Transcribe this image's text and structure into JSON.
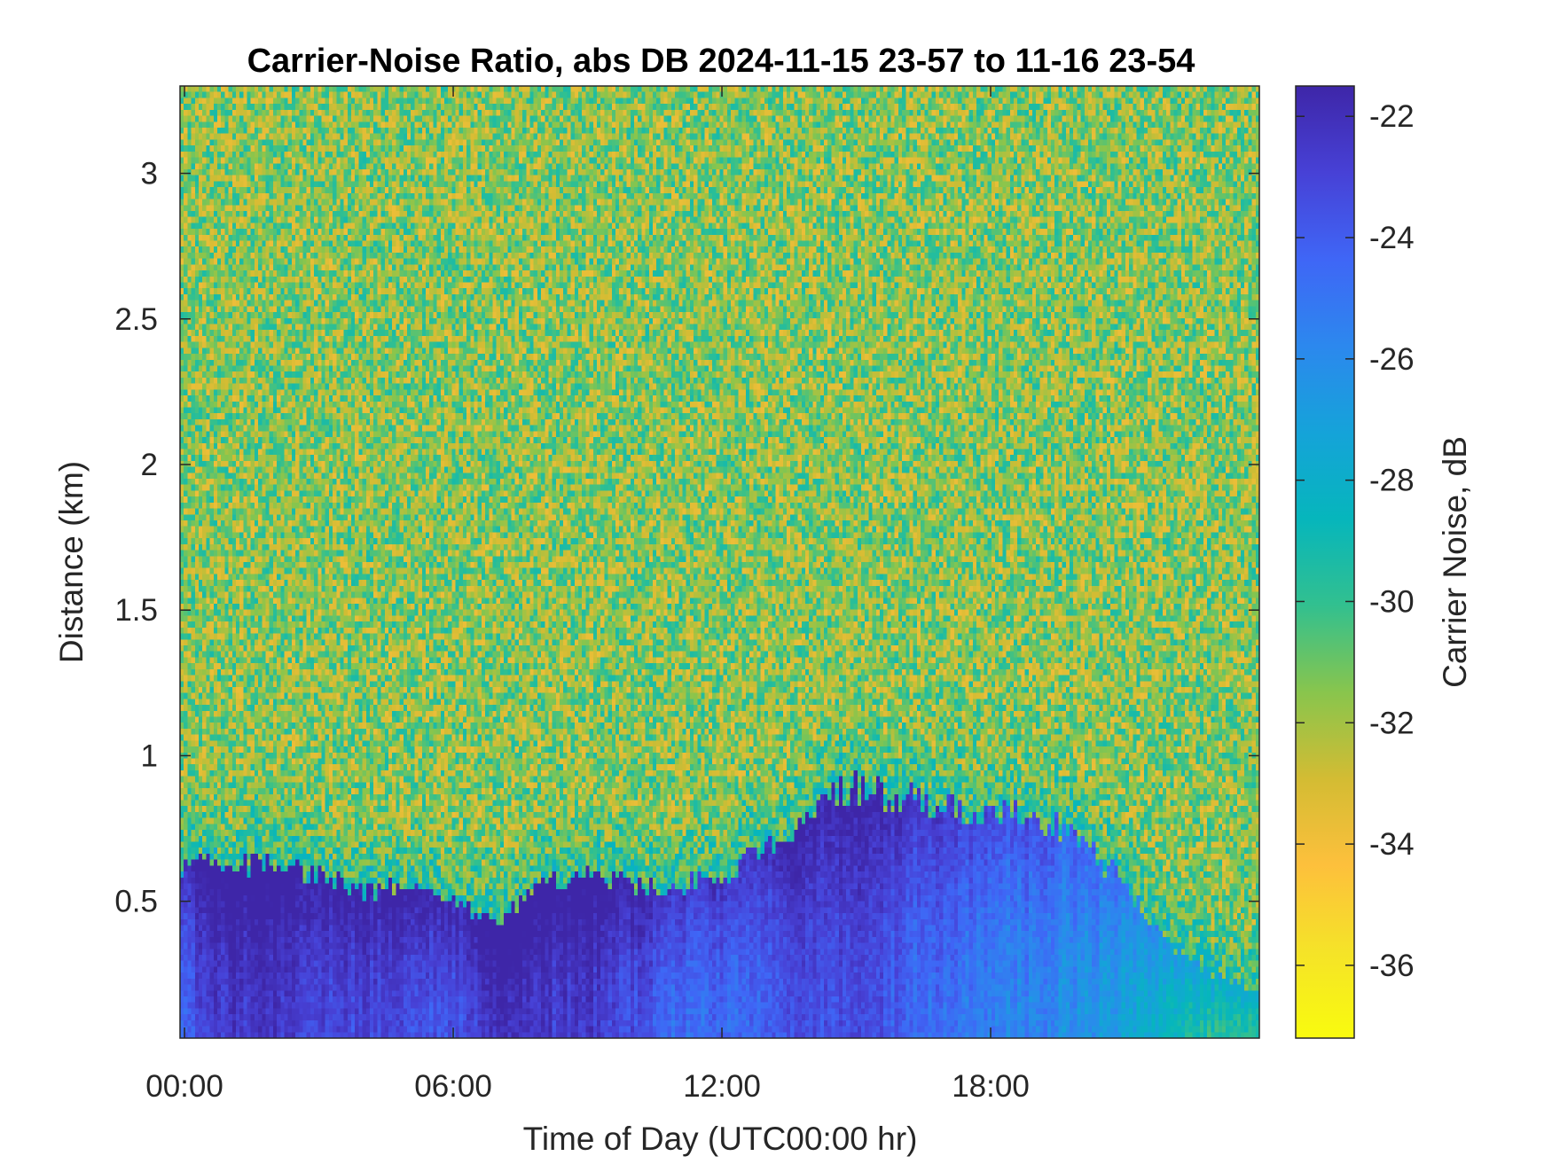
{
  "chart_data": {
    "type": "heatmap",
    "title": "Carrier-Noise Ratio, abs DB 2024-11-15 23-57 to 11-16 23-54",
    "xlabel": "Time of Day (UTC00:00 hr)",
    "ylabel": "Distance (km)",
    "colorbar_label": "Carrier Noise, dB",
    "xlim_hours": [
      -0.1,
      24
    ],
    "ylim_km": [
      0.03,
      3.3
    ],
    "clim_db": [
      -37.2,
      -21.5
    ],
    "x_ticks": [
      {
        "value": 0,
        "label": "00:00"
      },
      {
        "value": 6,
        "label": "06:00"
      },
      {
        "value": 12,
        "label": "12:00"
      },
      {
        "value": 18,
        "label": "18:00"
      }
    ],
    "y_ticks": [
      {
        "value": 0.5,
        "label": "0.5"
      },
      {
        "value": 1,
        "label": "1"
      },
      {
        "value": 1.5,
        "label": "1.5"
      },
      {
        "value": 2,
        "label": "2"
      },
      {
        "value": 2.5,
        "label": "2.5"
      },
      {
        "value": 3,
        "label": "3"
      }
    ],
    "colorbar_ticks": [
      {
        "value": -22,
        "label": "-22"
      },
      {
        "value": -24,
        "label": "-24"
      },
      {
        "value": -26,
        "label": "-26"
      },
      {
        "value": -28,
        "label": "-28"
      },
      {
        "value": -30,
        "label": "-30"
      },
      {
        "value": -32,
        "label": "-32"
      },
      {
        "value": -34,
        "label": "-34"
      },
      {
        "value": -36,
        "label": "-36"
      }
    ],
    "colormap": "parula",
    "colormap_colors": [
      "#3e26a8",
      "#4741d6",
      "#3f66f6",
      "#2c88ee",
      "#15a3d9",
      "#06b6bc",
      "#32c08f",
      "#88c54d",
      "#d3bc33",
      "#fdc03c",
      "#f5e328",
      "#f9fb0e"
    ],
    "background_level_db": -31.5,
    "boundary_layer_profile": [
      {
        "hour": 0.0,
        "top_km": 0.63,
        "core_db": -23.8
      },
      {
        "hour": 1.0,
        "top_km": 0.62,
        "core_db": -22.5
      },
      {
        "hour": 2.0,
        "top_km": 0.63,
        "core_db": -22.3
      },
      {
        "hour": 3.0,
        "top_km": 0.6,
        "core_db": -23.0
      },
      {
        "hour": 4.0,
        "top_km": 0.53,
        "core_db": -23.2
      },
      {
        "hour": 5.0,
        "top_km": 0.55,
        "core_db": -23.4
      },
      {
        "hour": 6.0,
        "top_km": 0.5,
        "core_db": -23.8
      },
      {
        "hour": 7.0,
        "top_km": 0.43,
        "core_db": -22.2
      },
      {
        "hour": 8.0,
        "top_km": 0.55,
        "core_db": -22.6
      },
      {
        "hour": 9.0,
        "top_km": 0.6,
        "core_db": -22.6
      },
      {
        "hour": 10.0,
        "top_km": 0.55,
        "core_db": -23.4
      },
      {
        "hour": 11.0,
        "top_km": 0.55,
        "core_db": -24.4
      },
      {
        "hour": 12.0,
        "top_km": 0.58,
        "core_db": -24.6
      },
      {
        "hour": 13.0,
        "top_km": 0.68,
        "core_db": -24.0
      },
      {
        "hour": 14.0,
        "top_km": 0.8,
        "core_db": -23.5
      },
      {
        "hour": 15.0,
        "top_km": 0.9,
        "core_db": -23.3
      },
      {
        "hour": 16.0,
        "top_km": 0.85,
        "core_db": -24.2
      },
      {
        "hour": 17.0,
        "top_km": 0.83,
        "core_db": -24.8
      },
      {
        "hour": 18.0,
        "top_km": 0.78,
        "core_db": -25.4
      },
      {
        "hour": 19.0,
        "top_km": 0.8,
        "core_db": -25.8
      },
      {
        "hour": 20.0,
        "top_km": 0.72,
        "core_db": -26.3
      },
      {
        "hour": 21.0,
        "top_km": 0.55,
        "core_db": -27.0
      },
      {
        "hour": 22.0,
        "top_km": 0.35,
        "core_db": -28.6
      },
      {
        "hour": 23.0,
        "top_km": 0.25,
        "core_db": -29.5
      },
      {
        "hour": 24.0,
        "top_km": 0.2,
        "core_db": -30.0
      }
    ]
  }
}
